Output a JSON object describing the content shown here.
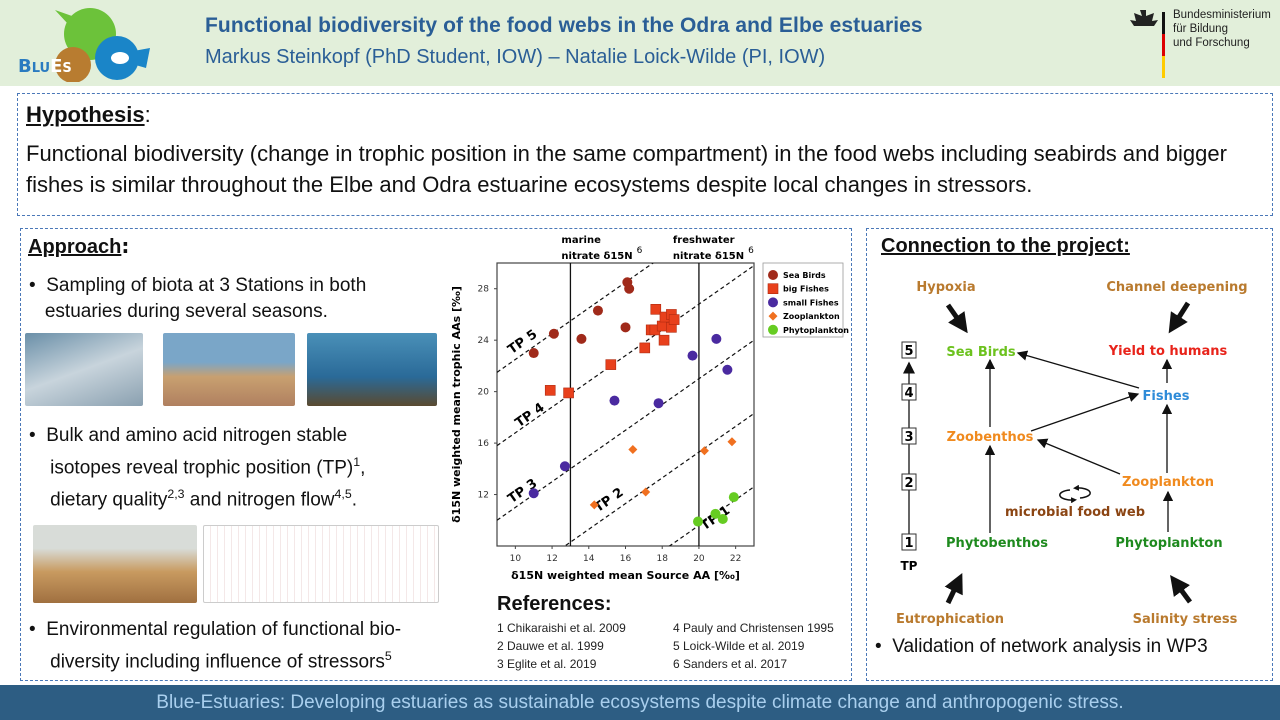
{
  "header": {
    "logo_text": "BLUES",
    "title": "Functional biodiversity of the food webs in the Odra and Elbe estuaries",
    "authors": "Markus Steinkopf (PhD Student, IOW) – Natalie Loick-Wilde (PI, IOW)",
    "ministry": [
      "Bundesministerium",
      "für Bildung",
      "und Forschung"
    ]
  },
  "hypothesis": {
    "heading": "Hypothesis",
    "colon": ":",
    "text": "Functional biodiversity (change in trophic position in the same compartment) in the food webs including seabirds and bigger fishes is similar throughout the Elbe and Odra estuarine ecosystems despite local changes in stressors."
  },
  "approach": {
    "heading": "Approach",
    "colon": ":",
    "bullet1": [
      "Sampling of biota at 3 Stations in both",
      "estuaries during several seasons."
    ],
    "bullet2": {
      "l1": "Bulk and amino acid nitrogen stable",
      "l2a": "isotopes reveal trophic position (TP)",
      "l2s": "1",
      "l2b": ",",
      "l3a": "dietary quality",
      "l3s": "2,3",
      "l3b": " and nitrogen flow",
      "l3s2": "4,5",
      "l3c": "."
    },
    "bullet3": {
      "l1": "Environmental regulation of functional bio-",
      "l2": "diversity including influence of stressors",
      "l2s": "5"
    }
  },
  "references": {
    "heading": "References:",
    "items": [
      "1 Chikaraishi et al. 2009",
      "2 Dauwe et al. 1999",
      "3 Eglite et al. 2019",
      "4 Pauly and Christensen 1995",
      "5 Loick-Wilde  et al. 2019",
      "6 Sanders et al. 2017"
    ]
  },
  "chart_data": {
    "type": "scatter",
    "xlabel": "δ15N weighted mean Source AA [‰]",
    "ylabel": "δ15N weighted mean trophic AAs [‰]",
    "xlim": [
      9,
      23
    ],
    "ylim": [
      8,
      30
    ],
    "xticks": [
      10,
      12,
      14,
      16,
      18,
      20,
      22
    ],
    "yticks": [
      12,
      16,
      20,
      24,
      28
    ],
    "annotations": {
      "marine": [
        "marine",
        "nitrate δ15N",
        "6"
      ],
      "freshwater": [
        "freshwater",
        "nitrate δ15N",
        "6"
      ]
    },
    "vlines": [
      13,
      20
    ],
    "tp_lines": [
      {
        "label": "TP 1",
        "intercept": -10.4
      },
      {
        "label": "TP 2",
        "intercept": -4.7
      },
      {
        "label": "TP 3",
        "intercept": 1.0
      },
      {
        "label": "TP 4",
        "intercept": 6.8
      },
      {
        "label": "TP 5",
        "intercept": 12.5
      }
    ],
    "series": [
      {
        "name": "Sea Birds",
        "color": "#a02a1a",
        "marker": "circle",
        "points": [
          [
            11.0,
            23.0
          ],
          [
            12.1,
            24.5
          ],
          [
            13.6,
            24.1
          ],
          [
            14.5,
            26.3
          ],
          [
            16.0,
            25.0
          ],
          [
            16.1,
            28.5
          ],
          [
            16.2,
            28.0
          ]
        ]
      },
      {
        "name": "big Fishes",
        "color": "#e8401c",
        "marker": "square",
        "points": [
          [
            11.9,
            20.1
          ],
          [
            12.9,
            19.9
          ],
          [
            15.2,
            22.1
          ],
          [
            17.05,
            23.4
          ],
          [
            17.4,
            24.8
          ],
          [
            17.6,
            24.8
          ],
          [
            17.65,
            26.4
          ],
          [
            18.0,
            25.1
          ],
          [
            18.1,
            24.0
          ],
          [
            18.15,
            25.8
          ],
          [
            18.5,
            25.0
          ],
          [
            18.5,
            26.0
          ],
          [
            18.65,
            25.6
          ]
        ]
      },
      {
        "name": "small Fishes",
        "color": "#4a2aa0",
        "marker": "circle",
        "points": [
          [
            11.0,
            12.1
          ],
          [
            12.7,
            14.2
          ],
          [
            15.4,
            19.3
          ],
          [
            17.8,
            19.1
          ],
          [
            19.65,
            22.8
          ],
          [
            20.95,
            24.1
          ],
          [
            21.55,
            21.7
          ]
        ]
      },
      {
        "name": "Zooplankton",
        "color": "#f07020",
        "marker": "diamond",
        "points": [
          [
            14.3,
            11.2
          ],
          [
            16.4,
            15.5
          ],
          [
            17.1,
            12.2
          ],
          [
            20.3,
            15.4
          ],
          [
            21.8,
            16.1
          ]
        ]
      },
      {
        "name": "Phytoplankton",
        "color": "#66cc22",
        "marker": "circle",
        "points": [
          [
            19.95,
            9.9
          ],
          [
            20.9,
            10.5
          ],
          [
            21.3,
            10.1
          ],
          [
            21.9,
            11.8
          ]
        ]
      }
    ]
  },
  "connection": {
    "heading": "Connection to the project:",
    "stressors": {
      "hypoxia": "Hypoxia",
      "channel": "Channel deepening",
      "eutro": "Eutrophication",
      "salinity": "Salinity stress"
    },
    "nodes": {
      "seabirds": "Sea Birds",
      "yield": "Yield to humans",
      "fishes": "Fishes",
      "zoobenthos": "Zoobenthos",
      "zooplankton": "Zooplankton",
      "microbial": "microbial food web",
      "phytobenthos": "Phytobenthos",
      "phytoplankton": "Phytoplankton"
    },
    "tp_levels": [
      "5",
      "4",
      "3",
      "2",
      "1"
    ],
    "tp_label": "TP",
    "bullet": "Validation of network analysis in WP3"
  },
  "footer": "Blue-Estuaries: Developing estuaries as sustainable ecosystems despite climate change and anthropogenic stress."
}
